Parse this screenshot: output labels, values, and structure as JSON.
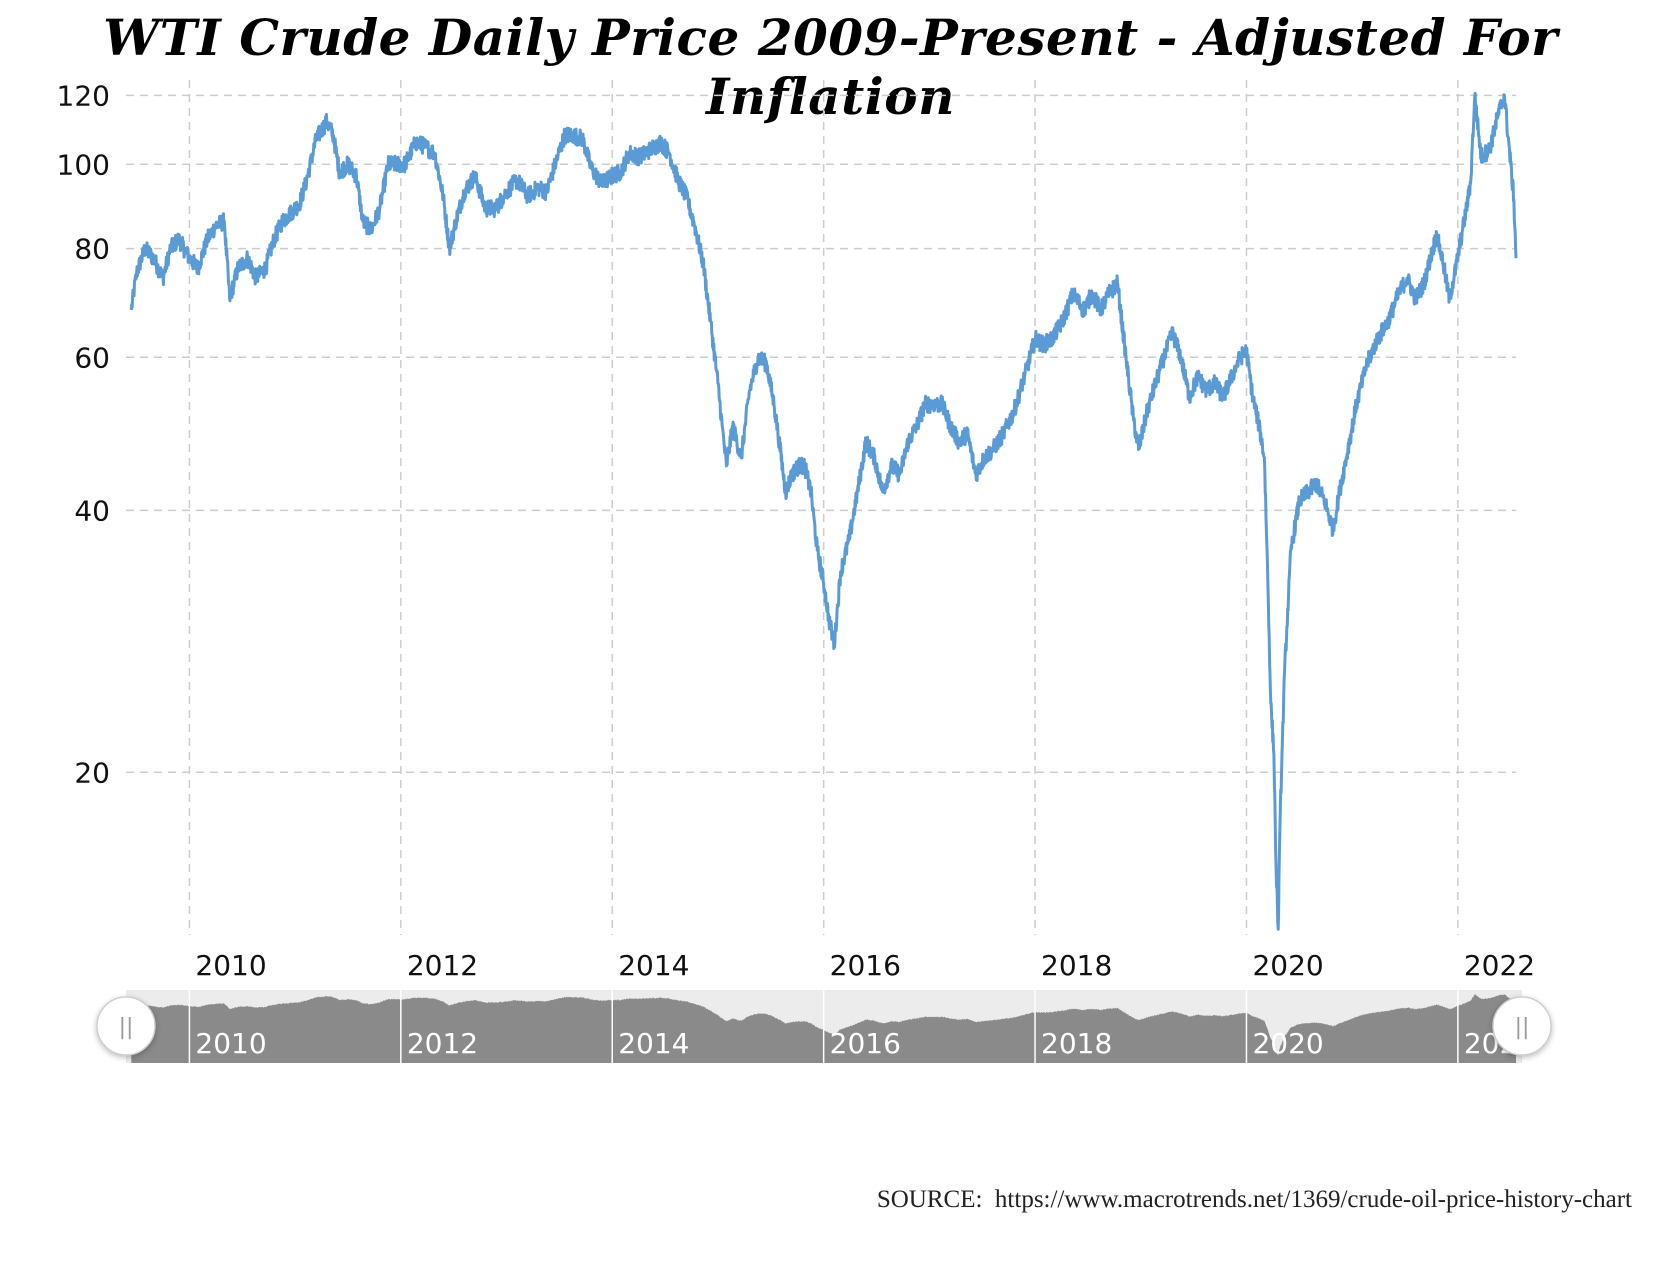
{
  "title": "WTI Crude Daily Price 2009-Present - Adjusted For Inflation",
  "source": "SOURCE:  https://www.macrotrends.net/1369/crude-oil-price-history-chart",
  "colors": {
    "line": "#5b9bd5",
    "grid": "#cccccc",
    "navigator_fill": "#8a8a8a",
    "navigator_bg": "#ececec"
  },
  "navigator": {
    "left_handle_icon": "grip-icon",
    "right_handle_icon": "grip-icon",
    "handle_glyph": "||"
  },
  "chart_data": {
    "type": "line",
    "title": "WTI Crude Daily Price 2009-Present - Adjusted For Inflation",
    "xlabel": "",
    "ylabel": "",
    "y_scale": "log",
    "grid": true,
    "xlim": [
      2009.4,
      2022.55
    ],
    "ylim": [
      13,
      125
    ],
    "y_ticks": [
      20,
      40,
      60,
      80,
      100,
      120
    ],
    "x_ticks": [
      "2010",
      "2012",
      "2014",
      "2016",
      "2018",
      "2020",
      "2022"
    ],
    "series": [
      {
        "values": [
          [
            2009.45,
            68
          ],
          [
            2009.5,
            75
          ],
          [
            2009.58,
            80
          ],
          [
            2009.66,
            78
          ],
          [
            2009.75,
            74
          ],
          [
            2009.82,
            80
          ],
          [
            2009.9,
            82
          ],
          [
            2010.0,
            78
          ],
          [
            2010.08,
            76
          ],
          [
            2010.17,
            82
          ],
          [
            2010.25,
            85
          ],
          [
            2010.33,
            86
          ],
          [
            2010.38,
            70
          ],
          [
            2010.46,
            76
          ],
          [
            2010.55,
            78
          ],
          [
            2010.63,
            74
          ],
          [
            2010.72,
            76
          ],
          [
            2010.8,
            82
          ],
          [
            2010.88,
            86
          ],
          [
            2010.96,
            88
          ],
          [
            2011.04,
            90
          ],
          [
            2011.1,
            95
          ],
          [
            2011.2,
            107
          ],
          [
            2011.3,
            112
          ],
          [
            2011.36,
            108
          ],
          [
            2011.42,
            98
          ],
          [
            2011.5,
            100
          ],
          [
            2011.58,
            97
          ],
          [
            2011.64,
            86
          ],
          [
            2011.72,
            84
          ],
          [
            2011.8,
            89
          ],
          [
            2011.88,
            100
          ],
          [
            2011.96,
            100
          ],
          [
            2012.04,
            100
          ],
          [
            2012.14,
            106
          ],
          [
            2012.22,
            105
          ],
          [
            2012.32,
            103
          ],
          [
            2012.4,
            92
          ],
          [
            2012.46,
            80
          ],
          [
            2012.52,
            86
          ],
          [
            2012.6,
            93
          ],
          [
            2012.7,
            97
          ],
          [
            2012.8,
            89
          ],
          [
            2012.9,
            89
          ],
          [
            2013.0,
            93
          ],
          [
            2013.1,
            96
          ],
          [
            2013.2,
            92
          ],
          [
            2013.3,
            94
          ],
          [
            2013.38,
            93
          ],
          [
            2013.46,
            100
          ],
          [
            2013.55,
            108
          ],
          [
            2013.63,
            108
          ],
          [
            2013.72,
            107
          ],
          [
            2013.8,
            99
          ],
          [
            2013.9,
            95
          ],
          [
            2014.0,
            97
          ],
          [
            2014.08,
            98
          ],
          [
            2014.16,
            103
          ],
          [
            2014.26,
            102
          ],
          [
            2014.36,
            104
          ],
          [
            2014.46,
            106
          ],
          [
            2014.54,
            103
          ],
          [
            2014.62,
            96
          ],
          [
            2014.7,
            92
          ],
          [
            2014.78,
            85
          ],
          [
            2014.86,
            77
          ],
          [
            2014.93,
            66
          ],
          [
            2015.0,
            56
          ],
          [
            2015.04,
            50
          ],
          [
            2015.08,
            45
          ],
          [
            2015.14,
            50
          ],
          [
            2015.22,
            46
          ],
          [
            2015.3,
            55
          ],
          [
            2015.38,
            60
          ],
          [
            2015.46,
            59
          ],
          [
            2015.53,
            53
          ],
          [
            2015.58,
            48
          ],
          [
            2015.64,
            42
          ],
          [
            2015.7,
            44
          ],
          [
            2015.76,
            45
          ],
          [
            2015.82,
            45
          ],
          [
            2015.88,
            42
          ],
          [
            2015.94,
            36
          ],
          [
            2016.0,
            33
          ],
          [
            2016.05,
            30
          ],
          [
            2016.1,
            28
          ],
          [
            2016.16,
            34
          ],
          [
            2016.24,
            37
          ],
          [
            2016.32,
            42
          ],
          [
            2016.4,
            48
          ],
          [
            2016.48,
            46
          ],
          [
            2016.56,
            42
          ],
          [
            2016.64,
            45
          ],
          [
            2016.72,
            44
          ],
          [
            2016.8,
            48
          ],
          [
            2016.88,
            50
          ],
          [
            2016.96,
            53
          ],
          [
            2017.04,
            53
          ],
          [
            2017.12,
            53
          ],
          [
            2017.2,
            50
          ],
          [
            2017.28,
            48
          ],
          [
            2017.36,
            49
          ],
          [
            2017.44,
            44
          ],
          [
            2017.52,
            46
          ],
          [
            2017.6,
            47
          ],
          [
            2017.7,
            49
          ],
          [
            2017.8,
            52
          ],
          [
            2017.9,
            57
          ],
          [
            2018.0,
            63
          ],
          [
            2018.08,
            62
          ],
          [
            2018.16,
            63
          ],
          [
            2018.26,
            66
          ],
          [
            2018.36,
            71
          ],
          [
            2018.46,
            68
          ],
          [
            2018.54,
            71
          ],
          [
            2018.62,
            68
          ],
          [
            2018.7,
            71
          ],
          [
            2018.78,
            73
          ],
          [
            2018.86,
            60
          ],
          [
            2018.93,
            51
          ],
          [
            2018.98,
            47
          ],
          [
            2019.06,
            52
          ],
          [
            2019.14,
            56
          ],
          [
            2019.22,
            60
          ],
          [
            2019.3,
            64
          ],
          [
            2019.38,
            60
          ],
          [
            2019.46,
            54
          ],
          [
            2019.54,
            57
          ],
          [
            2019.62,
            55
          ],
          [
            2019.7,
            56
          ],
          [
            2019.78,
            54
          ],
          [
            2019.86,
            57
          ],
          [
            2019.94,
            60
          ],
          [
            2020.0,
            61
          ],
          [
            2020.06,
            54
          ],
          [
            2020.12,
            50
          ],
          [
            2020.17,
            46
          ],
          [
            2020.2,
            34
          ],
          [
            2020.23,
            24
          ],
          [
            2020.26,
            21
          ],
          [
            2020.28,
            15.5
          ],
          [
            2020.3,
            13.2
          ],
          [
            2020.32,
            18
          ],
          [
            2020.36,
            26
          ],
          [
            2020.42,
            36
          ],
          [
            2020.5,
            41
          ],
          [
            2020.58,
            42
          ],
          [
            2020.66,
            43
          ],
          [
            2020.74,
            41
          ],
          [
            2020.82,
            38
          ],
          [
            2020.88,
            42
          ],
          [
            2020.96,
            47
          ],
          [
            2021.04,
            53
          ],
          [
            2021.14,
            59
          ],
          [
            2021.24,
            63
          ],
          [
            2021.34,
            66
          ],
          [
            2021.44,
            71
          ],
          [
            2021.52,
            74
          ],
          [
            2021.6,
            70
          ],
          [
            2021.68,
            73
          ],
          [
            2021.74,
            78
          ],
          [
            2021.8,
            83
          ],
          [
            2021.86,
            77
          ],
          [
            2021.92,
            70
          ],
          [
            2021.98,
            76
          ],
          [
            2022.06,
            86
          ],
          [
            2022.12,
            95
          ],
          [
            2022.16,
            120
          ],
          [
            2022.22,
            102
          ],
          [
            2022.3,
            104
          ],
          [
            2022.38,
            114
          ],
          [
            2022.44,
            120
          ],
          [
            2022.5,
            100
          ],
          [
            2022.53,
            91
          ],
          [
            2022.55,
            78
          ]
        ]
      }
    ]
  }
}
